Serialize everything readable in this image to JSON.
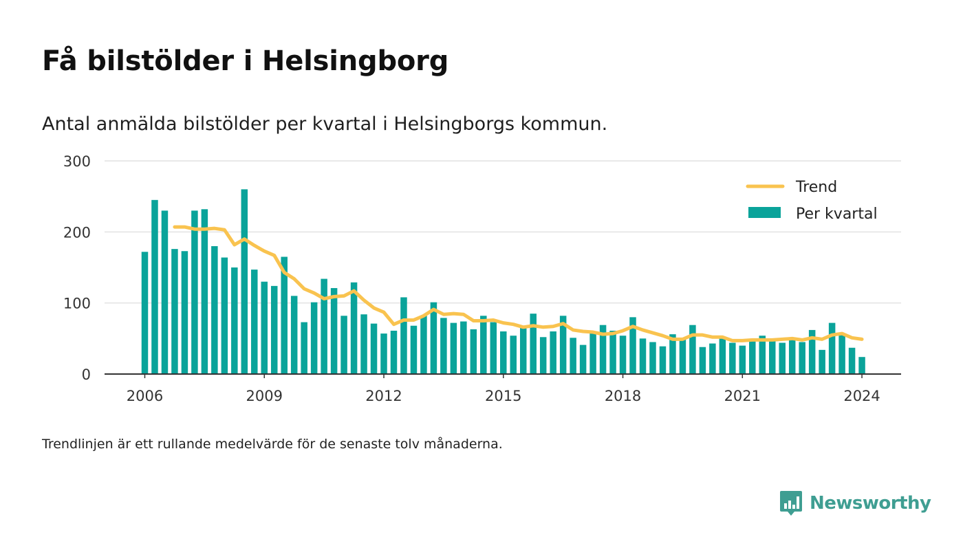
{
  "header": {
    "title": "Få bilstölder i Helsingborg",
    "subtitle": "Antal anmälda bilstölder per kvartal i Helsingborgs kommun."
  },
  "footer": {
    "note": "Trendlinjen är ett rullande medelvärde för de senaste tolv månaderna.",
    "brand": "Newsworthy",
    "brand_icon": "newsworthy-logo-icon"
  },
  "colors": {
    "bar": "#0aa39a",
    "trend": "#f9c34f",
    "grid": "#d9d9d9",
    "axis": "#333333",
    "brand": "#3f9e92"
  },
  "chart_data": {
    "type": "bar",
    "title": "",
    "xlabel": "",
    "ylabel": "",
    "ylim": [
      0,
      300
    ],
    "yticks": [
      "0",
      "100",
      "200",
      "300"
    ],
    "xticks": [
      "2006",
      "2009",
      "2012",
      "2015",
      "2018",
      "2021",
      "2024"
    ],
    "grid": true,
    "legend_position": "top-right",
    "categories": [
      "2006 Q1",
      "2006 Q2",
      "2006 Q3",
      "2006 Q4",
      "2007 Q1",
      "2007 Q2",
      "2007 Q3",
      "2007 Q4",
      "2008 Q1",
      "2008 Q2",
      "2008 Q3",
      "2008 Q4",
      "2009 Q1",
      "2009 Q2",
      "2009 Q3",
      "2009 Q4",
      "2010 Q1",
      "2010 Q2",
      "2010 Q3",
      "2010 Q4",
      "2011 Q1",
      "2011 Q2",
      "2011 Q3",
      "2011 Q4",
      "2012 Q1",
      "2012 Q2",
      "2012 Q3",
      "2012 Q4",
      "2013 Q1",
      "2013 Q2",
      "2013 Q3",
      "2013 Q4",
      "2014 Q1",
      "2014 Q2",
      "2014 Q3",
      "2014 Q4",
      "2015 Q1",
      "2015 Q2",
      "2015 Q3",
      "2015 Q4",
      "2016 Q1",
      "2016 Q2",
      "2016 Q3",
      "2016 Q4",
      "2017 Q1",
      "2017 Q2",
      "2017 Q3",
      "2017 Q4",
      "2018 Q1",
      "2018 Q2",
      "2018 Q3",
      "2018 Q4",
      "2019 Q1",
      "2019 Q2",
      "2019 Q3",
      "2019 Q4",
      "2020 Q1",
      "2020 Q2",
      "2020 Q3",
      "2020 Q4",
      "2021 Q1",
      "2021 Q2",
      "2021 Q3",
      "2021 Q4",
      "2022 Q1",
      "2022 Q2",
      "2022 Q3",
      "2022 Q4",
      "2023 Q1",
      "2023 Q2",
      "2023 Q3",
      "2023 Q4",
      "2024 Q1"
    ],
    "series": [
      {
        "name": "Per kvartal",
        "type": "bar",
        "values": [
          172,
          245,
          230,
          176,
          173,
          230,
          232,
          180,
          164,
          150,
          260,
          147,
          130,
          124,
          165,
          110,
          73,
          101,
          134,
          121,
          82,
          129,
          84,
          71,
          57,
          61,
          108,
          68,
          82,
          101,
          79,
          72,
          74,
          63,
          82,
          73,
          60,
          54,
          66,
          85,
          52,
          60,
          82,
          51,
          41,
          59,
          69,
          61,
          54,
          80,
          50,
          45,
          39,
          56,
          50,
          69,
          38,
          43,
          50,
          44,
          40,
          47,
          54,
          47,
          44,
          48,
          45,
          62,
          34,
          72,
          55,
          37,
          24
        ]
      },
      {
        "name": "Trend",
        "type": "line",
        "values": [
          null,
          null,
          null,
          207,
          207,
          204,
          204,
          205,
          203,
          182,
          190,
          181,
          173,
          167,
          143,
          134,
          120,
          114,
          106,
          109,
          110,
          117,
          104,
          93,
          87,
          70,
          76,
          76,
          82,
          91,
          84,
          85,
          84,
          75,
          75,
          76,
          72,
          70,
          66,
          68,
          66,
          67,
          71,
          62,
          60,
          59,
          56,
          57,
          61,
          67,
          62,
          58,
          54,
          49,
          49,
          55,
          55,
          52,
          52,
          47,
          47,
          48,
          48,
          48,
          49,
          50,
          48,
          51,
          49,
          55,
          57,
          51,
          49
        ]
      }
    ]
  }
}
